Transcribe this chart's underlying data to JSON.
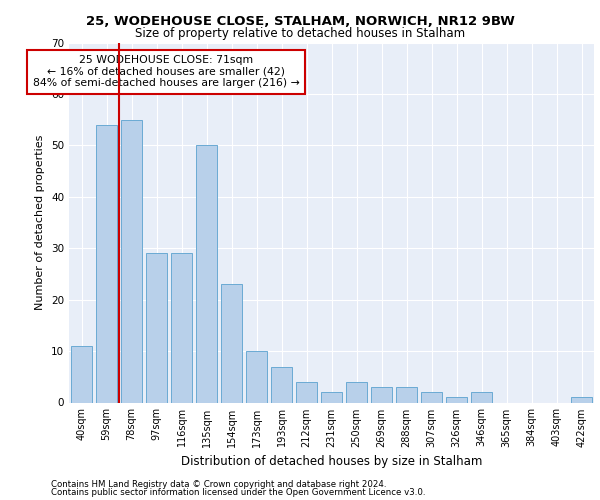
{
  "title1": "25, WODEHOUSE CLOSE, STALHAM, NORWICH, NR12 9BW",
  "title2": "Size of property relative to detached houses in Stalham",
  "xlabel": "Distribution of detached houses by size in Stalham",
  "ylabel": "Number of detached properties",
  "categories": [
    "40sqm",
    "59sqm",
    "78sqm",
    "97sqm",
    "116sqm",
    "135sqm",
    "154sqm",
    "173sqm",
    "193sqm",
    "212sqm",
    "231sqm",
    "250sqm",
    "269sqm",
    "288sqm",
    "307sqm",
    "326sqm",
    "346sqm",
    "365sqm",
    "384sqm",
    "403sqm",
    "422sqm"
  ],
  "values": [
    11,
    54,
    55,
    29,
    29,
    50,
    23,
    10,
    7,
    4,
    2,
    4,
    3,
    3,
    2,
    1,
    2,
    0,
    0,
    0,
    1
  ],
  "bar_color": "#b8d0ea",
  "bar_edge_color": "#6aaad4",
  "vline_color": "#cc0000",
  "annotation_text": "25 WODEHOUSE CLOSE: 71sqm\n← 16% of detached houses are smaller (42)\n84% of semi-detached houses are larger (216) →",
  "annotation_box_color": "#ffffff",
  "annotation_box_edge": "#cc0000",
  "ylim": [
    0,
    70
  ],
  "yticks": [
    0,
    10,
    20,
    30,
    40,
    50,
    60,
    70
  ],
  "background_color": "#e8eef8",
  "footer1": "Contains HM Land Registry data © Crown copyright and database right 2024.",
  "footer2": "Contains public sector information licensed under the Open Government Licence v3.0."
}
